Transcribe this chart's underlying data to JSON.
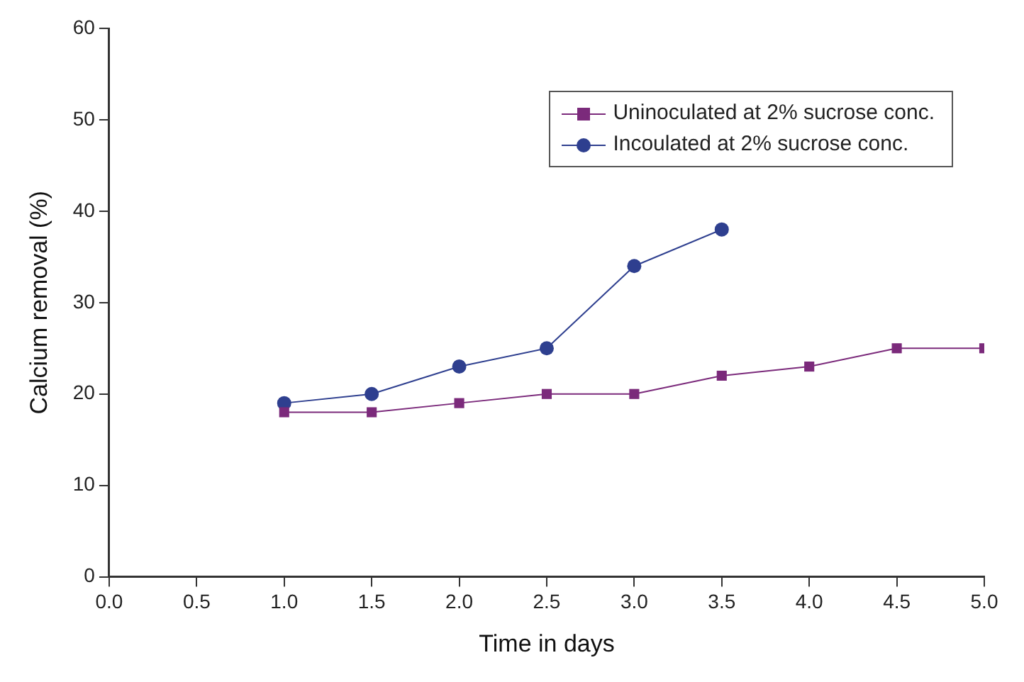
{
  "chart_data": {
    "type": "line",
    "xlabel": "Time in days",
    "ylabel": "Calcium removal (%)",
    "xlim": [
      0,
      5
    ],
    "xticks": [
      {
        "value": 0,
        "label": "0.0"
      },
      {
        "value": 0.5,
        "label": "0.5"
      },
      {
        "value": 1,
        "label": "1.0"
      },
      {
        "value": 1.5,
        "label": "1.5"
      },
      {
        "value": 2,
        "label": "2.0"
      },
      {
        "value": 2.5,
        "label": "2.5"
      },
      {
        "value": 3,
        "label": "3.0"
      },
      {
        "value": 3.5,
        "label": "3.5"
      },
      {
        "value": 4,
        "label": "4.0"
      },
      {
        "value": 4.5,
        "label": "4.5"
      },
      {
        "value": 5,
        "label": "5.0"
      }
    ],
    "ylim": [
      0,
      60
    ],
    "yticks": [
      0,
      10,
      20,
      30,
      40,
      50,
      60
    ],
    "grid": false,
    "legend": "top right",
    "line_style": "solid",
    "series": [
      {
        "name": "Uninoculated at 2% sucrose conc.",
        "color": "#7b2a7b",
        "marker": "square",
        "x": [
          1,
          1.5,
          2,
          2.5,
          3,
          3.5,
          4,
          4.5,
          5
        ],
        "values": [
          18,
          18,
          19,
          20,
          20,
          22,
          23,
          25,
          25
        ]
      },
      {
        "name": "Incoulated at 2% sucrose conc.",
        "color": "#2e3f8f",
        "marker": "circle",
        "x": [
          1,
          1.5,
          2,
          2.5,
          3,
          3.5
        ],
        "values": [
          19,
          20,
          23,
          25,
          34,
          38
        ]
      }
    ]
  }
}
